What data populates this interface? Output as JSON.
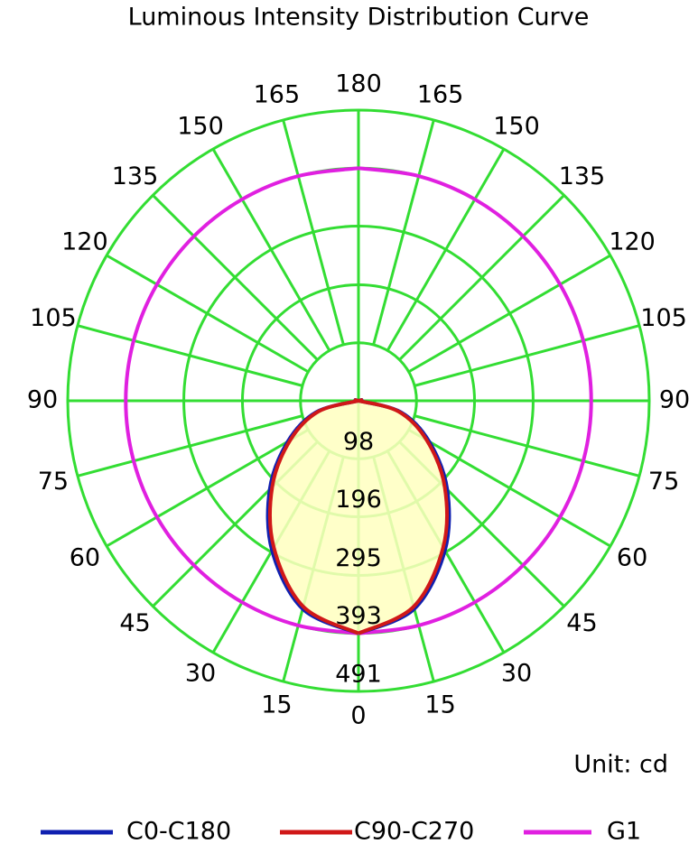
{
  "chart_data": {
    "type": "polar",
    "title": "Luminous Intensity Distribution Curve",
    "unit_label": "Unit: cd",
    "angles": [
      0,
      15,
      30,
      45,
      60,
      75,
      90,
      105,
      120,
      135,
      150,
      165,
      180
    ],
    "rlim": [
      0,
      491
    ],
    "rticks": [
      98,
      196,
      295,
      393,
      491
    ],
    "grid": true,
    "fill_color": "#ffffc0",
    "series": [
      {
        "name": "C0-C180",
        "color": "#1020b0",
        "values": [
          393,
          364,
          292,
          212,
          138,
          74,
          0,
          0,
          0,
          0,
          0,
          0,
          0
        ]
      },
      {
        "name": "C90-C270",
        "color": "#d01818",
        "values": [
          393,
          360,
          286,
          206,
          133,
          70,
          0,
          0,
          0,
          0,
          0,
          0,
          0
        ]
      },
      {
        "name": "G1",
        "color": "#e020e0",
        "values": [
          393,
          393,
          393,
          393,
          393,
          393,
          393,
          393,
          393,
          393,
          393,
          393,
          393
        ]
      }
    ]
  }
}
